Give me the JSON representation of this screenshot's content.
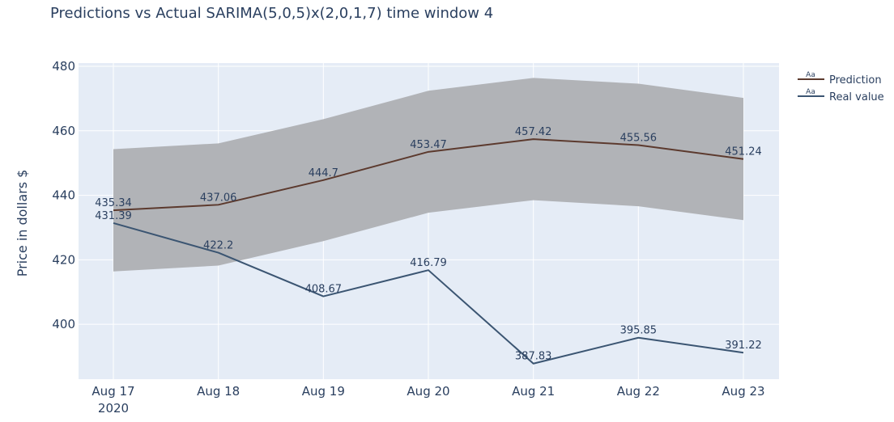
{
  "chart_data": {
    "type": "line",
    "title": "Predictions vs Actual SARIMA(5,0,5)x(2,0,1,7) time window 4",
    "xlabel": "",
    "ylabel": "Price in dollars $",
    "x": [
      "Aug 17",
      "Aug 18",
      "Aug 19",
      "Aug 20",
      "Aug 21",
      "Aug 22",
      "Aug 23"
    ],
    "x_dates": [
      "2020-08-17",
      "2020-08-18",
      "2020-08-19",
      "2020-08-20",
      "2020-08-21",
      "2020-08-22",
      "2020-08-23"
    ],
    "x_year_label": "2020",
    "ylim": [
      383,
      481
    ],
    "yticks": [
      400,
      420,
      440,
      460,
      480
    ],
    "grid": true,
    "legend_position": "top-right",
    "legend_symbol": "Aa",
    "series": [
      {
        "name": "Prediction",
        "color": "#5c3a2e",
        "values": [
          435.34,
          437.06,
          444.7,
          453.47,
          457.42,
          455.56,
          451.24
        ],
        "labels": [
          "435.34",
          "437.06",
          "444.7",
          "453.47",
          "457.42",
          "455.56",
          "451.24"
        ]
      },
      {
        "name": "Real value",
        "color": "#3b5572",
        "values": [
          431.39,
          422.2,
          408.67,
          416.79,
          387.83,
          395.85,
          391.22
        ],
        "labels": [
          "431.39",
          "422.2",
          "408.67",
          "416.79",
          "387.83",
          "395.85",
          "391.22"
        ]
      }
    ],
    "confidence_band": {
      "color": "#b1b3b7",
      "upper": [
        454.3,
        456.1,
        463.6,
        472.4,
        476.4,
        474.6,
        470.2
      ],
      "lower": [
        416.4,
        418.2,
        425.8,
        434.6,
        438.5,
        436.6,
        432.3
      ]
    },
    "colors": {
      "plot_background": "#e5ecf6",
      "text": "#2a3f5f",
      "grid": "#ffffff"
    }
  }
}
